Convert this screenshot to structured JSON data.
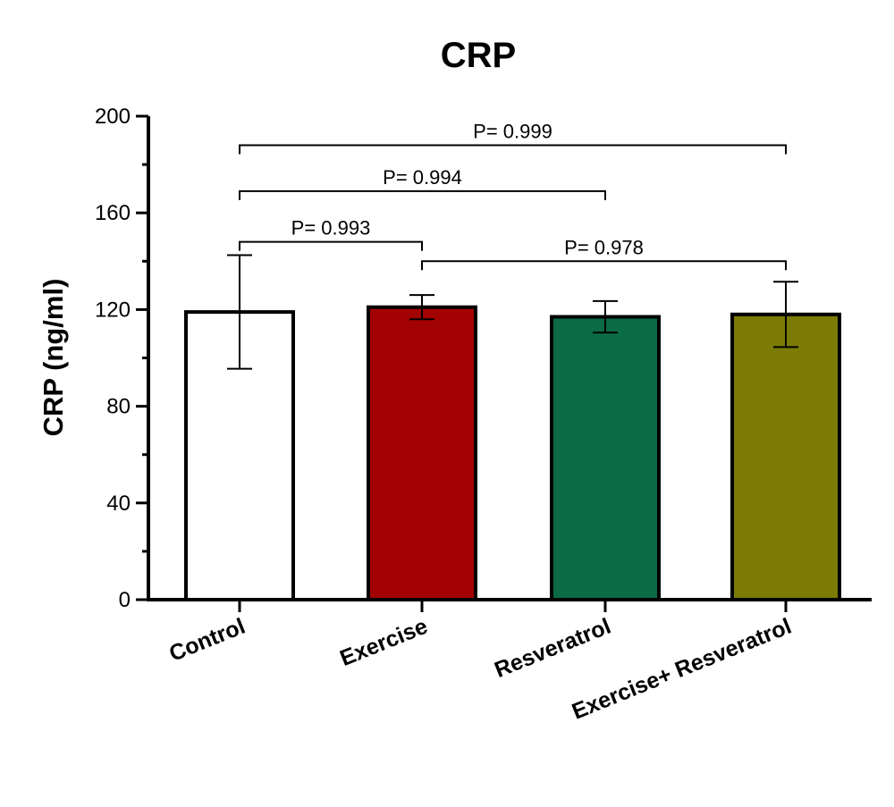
{
  "chart_data": {
    "type": "bar",
    "title": "CRP",
    "ylabel": "CRP  (ng/ml)",
    "xlabel": "",
    "ylim": [
      0,
      200
    ],
    "yticks": [
      0,
      40,
      80,
      120,
      160,
      200
    ],
    "categories": [
      "Control",
      "Exercise",
      "Resveratrol",
      "Exercise+ Resveratrol"
    ],
    "values": [
      119,
      121,
      117,
      118
    ],
    "errors": [
      23.5,
      5,
      6.5,
      13.5
    ],
    "bar_colors": [
      "#ffffff",
      "#a30202",
      "#0b6b44",
      "#7b7b06"
    ],
    "comparisons": [
      {
        "from": 0,
        "to": 3,
        "label": "P= 0.999",
        "level": 188
      },
      {
        "from": 0,
        "to": 1,
        "label": "P= 0.993",
        "level": 148
      },
      {
        "from": 0,
        "to": 2,
        "label": "P= 0.994",
        "level": 169
      },
      {
        "from": 1,
        "to": 3,
        "label": "P= 0.978",
        "level": 140
      }
    ],
    "grid": false,
    "legend": "none"
  }
}
